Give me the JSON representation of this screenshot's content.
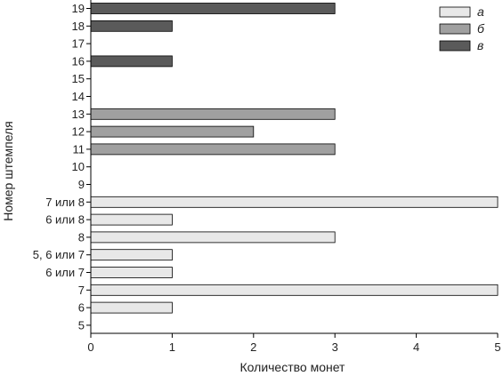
{
  "chart_data": {
    "type": "bar",
    "orientation": "horizontal",
    "xlabel": "Количество монет",
    "ylabel": "Номер штемпеля",
    "xlim": [
      0,
      5
    ],
    "xticks": [
      0,
      1,
      2,
      3,
      4,
      5
    ],
    "grid": false,
    "legend_position": "top-right",
    "categories": [
      "5",
      "6",
      "7",
      "6 или 7",
      "5, 6 или 7",
      "8",
      "6 или 8",
      "7 или 8",
      "9",
      "10",
      "11",
      "12",
      "13",
      "14",
      "15",
      "16",
      "17",
      "18",
      "19"
    ],
    "series": [
      {
        "name": "а",
        "color": "#e8e8e8",
        "values": [
          0,
          1,
          5,
          1,
          1,
          3,
          1,
          5,
          0,
          0,
          0,
          0,
          0,
          0,
          0,
          0,
          0,
          0,
          0
        ]
      },
      {
        "name": "б",
        "color": "#a0a0a0",
        "values": [
          0,
          0,
          0,
          0,
          0,
          0,
          0,
          0,
          0,
          0,
          3,
          2,
          3,
          0,
          0,
          0,
          0,
          0,
          0
        ]
      },
      {
        "name": "в",
        "color": "#5a5a5a",
        "values": [
          0,
          0,
          0,
          0,
          0,
          0,
          0,
          0,
          0,
          0,
          0,
          0,
          0,
          0,
          0,
          1,
          0,
          1,
          3
        ]
      }
    ]
  }
}
